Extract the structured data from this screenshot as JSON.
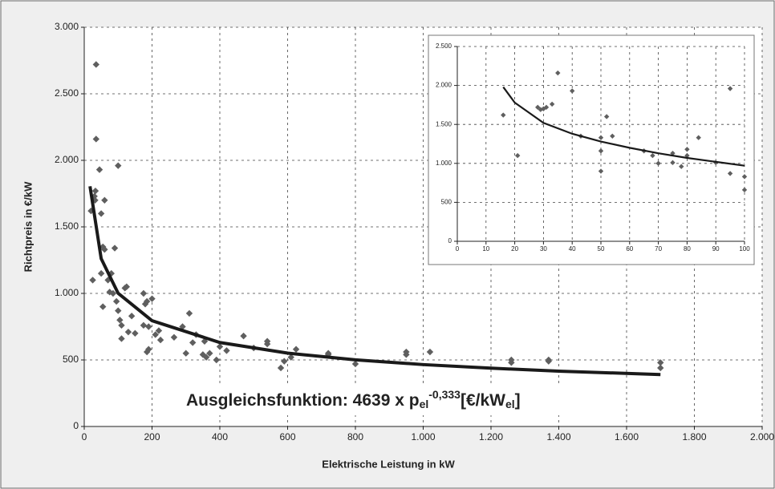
{
  "chart_data": [
    {
      "type": "scatter",
      "xlabel": "Elektrische Leistung in kW",
      "ylabel": "Richtpreis in €/kW",
      "annotation": [
        "Ausgleichsfunktion: 4639 x p",
        "el",
        "-0,333",
        "[€/kW",
        "el",
        "]"
      ],
      "xlim": [
        0,
        2000
      ],
      "xticks": [
        0,
        200,
        400,
        600,
        800,
        {
          "value": 1000,
          "label": "1.000"
        },
        {
          "value": 1200,
          "label": "1.200"
        },
        {
          "value": 1400,
          "label": "1.400"
        },
        {
          "value": 1600,
          "label": "1.600"
        },
        {
          "value": 1800,
          "label": "1.800"
        },
        {
          "value": 2000,
          "label": "2.000"
        }
      ],
      "ylim": [
        0,
        3000
      ],
      "yticks": [
        0,
        500,
        {
          "value": 1000,
          "label": "1.000"
        },
        {
          "value": 1500,
          "label": "1.500"
        },
        {
          "value": 2000,
          "label": "2.000"
        },
        {
          "value": 2500,
          "label": "2.500"
        },
        {
          "value": 3000,
          "label": "3.000"
        }
      ],
      "grid": true,
      "series": [
        {
          "color": "#5f5f5f",
          "x": [
            20,
            25,
            30,
            32,
            33,
            35,
            35,
            45,
            50,
            55,
            50,
            60,
            60,
            55,
            70,
            75,
            80,
            85,
            90,
            95,
            100,
            100,
            105,
            110,
            110,
            120,
            125,
            130,
            140,
            150,
            175,
            175,
            180,
            185,
            190,
            185,
            190,
            200,
            210,
            220,
            225,
            265,
            290,
            300,
            310,
            320,
            330,
            350,
            360,
            355,
            370,
            390,
            400,
            420,
            470,
            500,
            540,
            540,
            580,
            590,
            610,
            625,
            720,
            720,
            800,
            950,
            950,
            1020,
            1260,
            1260,
            1370,
            1370,
            1700,
            1700
          ],
          "values": [
            1620,
            1100,
            1730,
            1700,
            1770,
            2720,
            2160,
            1930,
            1600,
            1350,
            1150,
            1700,
            1330,
            900,
            1100,
            1010,
            1150,
            1000,
            1340,
            940,
            1960,
            870,
            800,
            760,
            660,
            1040,
            1050,
            710,
            830,
            700,
            1000,
            760,
            920,
            940,
            750,
            560,
            580,
            960,
            690,
            720,
            650,
            670,
            750,
            550,
            850,
            630,
            690,
            540,
            520,
            640,
            550,
            500,
            600,
            570,
            680,
            590,
            640,
            620,
            440,
            490,
            520,
            580,
            550,
            540,
            470,
            560,
            540,
            560,
            500,
            480,
            500,
            490,
            480,
            440
          ]
        },
        {
          "type": "line",
          "color": "#1a1a1a",
          "x": [
            17,
            50,
            100,
            200,
            400,
            600,
            800,
            1000,
            1200,
            1400,
            1700
          ],
          "values": [
            1805,
            1261,
            1001,
            795,
            631,
            551,
            501,
            465,
            438,
            416,
            390
          ]
        }
      ]
    },
    {
      "type": "scatter",
      "xlim": [
        0,
        100
      ],
      "xticks": [
        0,
        10,
        20,
        30,
        40,
        50,
        60,
        70,
        80,
        90,
        100
      ],
      "ylim": [
        0,
        2500
      ],
      "yticks": [
        0,
        500,
        {
          "value": 1000,
          "label": "1.000"
        },
        {
          "value": 1500,
          "label": "1.500"
        },
        {
          "value": 2000,
          "label": "2.000"
        },
        {
          "value": 2500,
          "label": "2.500"
        }
      ],
      "grid": true,
      "series": [
        {
          "color": "#5f5f5f",
          "x": [
            16,
            21,
            28,
            29,
            30,
            31,
            33,
            35,
            40,
            43,
            50,
            50,
            50,
            52,
            54,
            65,
            68,
            70,
            75,
            75,
            78,
            80,
            80,
            84,
            90,
            95,
            95,
            100,
            100
          ],
          "values": [
            1620,
            1100,
            1720,
            1690,
            1700,
            1720,
            1760,
            2160,
            1930,
            1350,
            1330,
            1160,
            900,
            1600,
            1350,
            1160,
            1100,
            1000,
            1130,
            1010,
            960,
            1180,
            1100,
            1330,
            1010,
            1960,
            870,
            830,
            660
          ]
        },
        {
          "type": "line",
          "color": "#1a1a1a",
          "x": [
            16,
            20,
            30,
            40,
            50,
            60,
            70,
            80,
            90,
            100
          ],
          "values": [
            1980,
            1780,
            1520,
            1380,
            1280,
            1200,
            1130,
            1070,
            1020,
            970
          ]
        }
      ]
    }
  ]
}
